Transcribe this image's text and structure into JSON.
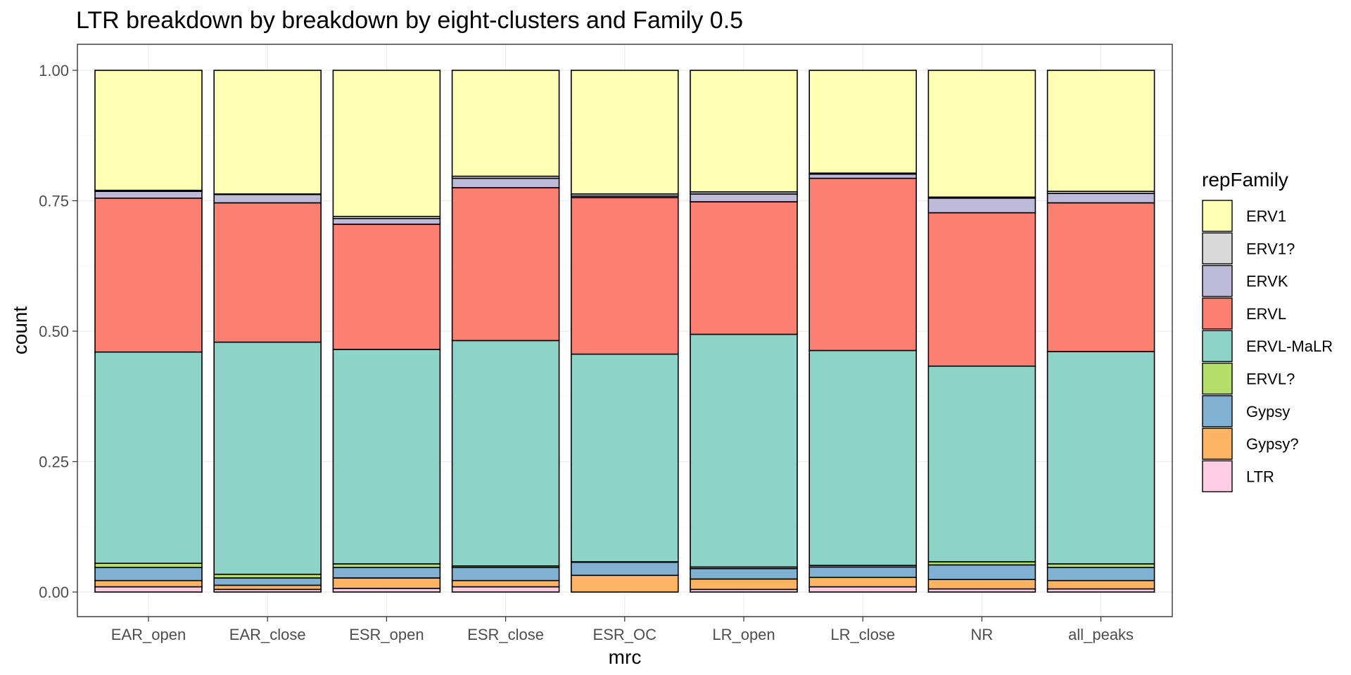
{
  "chart_data": {
    "type": "bar",
    "stacked": true,
    "position": "fill",
    "title": "LTR breakdown by breakdown by eight-clusters and Family 0.5",
    "xlabel": "mrc",
    "ylabel": "count",
    "ylim": [
      0,
      1
    ],
    "yticks": [
      0,
      0.25,
      0.5,
      0.75,
      1
    ],
    "ytick_labels": [
      "0.00",
      "0.25",
      "0.50",
      "0.75",
      "1.00"
    ],
    "grid": true,
    "legend": {
      "title": "repFamily",
      "placement": "right"
    },
    "categories": [
      "EAR_open",
      "EAR_close",
      "ESR_open",
      "ESR_close",
      "ESR_OC",
      "LR_open",
      "LR_close",
      "NR",
      "all_peaks"
    ],
    "series": [
      {
        "name": "ERV1",
        "color": "#FFFFB3",
        "values": [
          0.23,
          0.237,
          0.28,
          0.203,
          0.237,
          0.233,
          0.197,
          0.243,
          0.232
        ]
      },
      {
        "name": "ERV1?",
        "color": "#D9D9D9",
        "values": [
          0.002,
          0.001,
          0.004,
          0.004,
          0.004,
          0.004,
          0.002,
          0.002,
          0.004
        ]
      },
      {
        "name": "ERVK",
        "color": "#BEBADA",
        "values": [
          0.013,
          0.016,
          0.011,
          0.018,
          0.003,
          0.015,
          0.008,
          0.028,
          0.018
        ]
      },
      {
        "name": "ERVL",
        "color": "#FB8072",
        "values": [
          0.295,
          0.267,
          0.24,
          0.293,
          0.3,
          0.254,
          0.33,
          0.294,
          0.285
        ]
      },
      {
        "name": "ERVL-MaLR",
        "color": "#8DD3C7",
        "values": [
          0.405,
          0.445,
          0.411,
          0.432,
          0.398,
          0.446,
          0.412,
          0.375,
          0.407
        ]
      },
      {
        "name": "ERVL?",
        "color": "#B3DE69",
        "values": [
          0.008,
          0.007,
          0.007,
          0.003,
          0.001,
          0.003,
          0.003,
          0.006,
          0.007
        ]
      },
      {
        "name": "Gypsy",
        "color": "#80B1D3",
        "values": [
          0.025,
          0.014,
          0.02,
          0.025,
          0.025,
          0.02,
          0.02,
          0.028,
          0.025
        ]
      },
      {
        "name": "Gypsy?",
        "color": "#FDB462",
        "values": [
          0.012,
          0.008,
          0.02,
          0.012,
          0.032,
          0.02,
          0.018,
          0.018,
          0.016
        ]
      },
      {
        "name": "LTR",
        "color": "#FCCDE5",
        "values": [
          0.01,
          0.005,
          0.007,
          0.01,
          0.0,
          0.005,
          0.01,
          0.006,
          0.006
        ]
      }
    ]
  }
}
